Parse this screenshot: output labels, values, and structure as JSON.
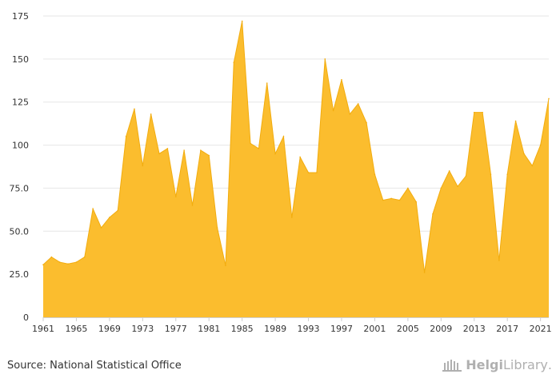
{
  "source_text": "Source: National Statistical Office",
  "brand": {
    "name_bold": "Helgi",
    "name_light": "Library",
    "suffix": "."
  },
  "colors": {
    "area_fill": "#fbbd2e",
    "area_stroke": "#f2ac0e",
    "grid": "#e6e6e6",
    "axis_text": "#333333"
  },
  "chart_data": {
    "type": "area",
    "title": "",
    "xlabel": "",
    "ylabel": "",
    "xlim": [
      1961,
      2022
    ],
    "ylim": [
      0,
      175
    ],
    "grid": true,
    "legend": "none",
    "x_ticks": [
      "1961",
      "1965",
      "1969",
      "1973",
      "1977",
      "1981",
      "1985",
      "1989",
      "1993",
      "1997",
      "2001",
      "2005",
      "2009",
      "2013",
      "2017",
      "2021"
    ],
    "y_ticks": [
      "0",
      "25.0",
      "50.0",
      "75.0",
      "100",
      "125",
      "150",
      "175"
    ],
    "x": [
      1961,
      1962,
      1963,
      1964,
      1965,
      1966,
      1967,
      1968,
      1969,
      1970,
      1971,
      1972,
      1973,
      1974,
      1975,
      1976,
      1977,
      1978,
      1979,
      1980,
      1981,
      1982,
      1983,
      1984,
      1985,
      1986,
      1987,
      1988,
      1989,
      1990,
      1991,
      1992,
      1993,
      1994,
      1995,
      1996,
      1997,
      1998,
      1999,
      2000,
      2001,
      2002,
      2003,
      2004,
      2005,
      2006,
      2007,
      2008,
      2009,
      2010,
      2011,
      2012,
      2013,
      2014,
      2015,
      2016,
      2017,
      2018,
      2019,
      2020,
      2021,
      2022
    ],
    "series": [
      {
        "values": [
          30.5,
          35,
          32,
          31,
          32,
          35,
          63,
          52,
          58,
          62,
          105,
          121,
          88,
          118,
          95,
          98,
          70,
          97,
          65,
          97,
          94,
          52,
          30,
          148,
          172,
          101,
          98,
          136,
          95,
          105,
          58,
          93,
          84,
          84,
          150,
          120,
          138,
          118,
          124,
          113,
          83,
          68,
          69,
          68,
          75,
          67,
          26,
          60,
          75,
          85,
          76,
          82,
          119,
          119,
          83,
          33,
          83,
          114,
          95,
          88,
          100,
          127
        ]
      }
    ]
  }
}
